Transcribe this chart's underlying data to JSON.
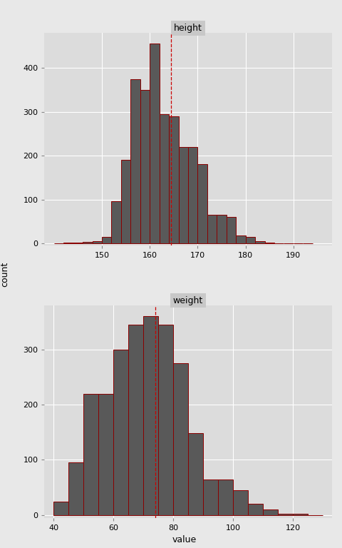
{
  "height": {
    "title": "height",
    "bin_edges": [
      140,
      142,
      144,
      146,
      148,
      150,
      152,
      154,
      156,
      158,
      160,
      162,
      164,
      166,
      168,
      170,
      172,
      174,
      176,
      178,
      180,
      182,
      184,
      186,
      188,
      190,
      192,
      194
    ],
    "counts": [
      0,
      1,
      2,
      3,
      5,
      15,
      96,
      190,
      375,
      350,
      455,
      295,
      290,
      220,
      220,
      180,
      65,
      65,
      60,
      18,
      15,
      5,
      2,
      0,
      0,
      0,
      0
    ],
    "mean_line": 164.5,
    "xlim": [
      138,
      198
    ],
    "ylim": [
      -5,
      480
    ],
    "xticks": [
      150,
      160,
      170,
      180,
      190
    ],
    "yticks": [
      0,
      100,
      200,
      300,
      400
    ]
  },
  "weight": {
    "title": "weight",
    "bin_edges": [
      40,
      45,
      50,
      55,
      60,
      65,
      70,
      75,
      80,
      85,
      90,
      95,
      100,
      105,
      110,
      115,
      120,
      125,
      130
    ],
    "counts": [
      25,
      95,
      220,
      220,
      300,
      345,
      360,
      345,
      275,
      148,
      65,
      65,
      45,
      20,
      10,
      3,
      2,
      0
    ],
    "mean_line": 74.0,
    "xlim": [
      37,
      133
    ],
    "ylim": [
      -5,
      380
    ],
    "xticks": [
      40,
      60,
      80,
      100,
      120
    ],
    "yticks": [
      0,
      100,
      200,
      300
    ]
  },
  "bar_color": "#595959",
  "bar_edge_color": "#8B0000",
  "bg_color": "#E8E8E8",
  "panel_bg": "#DCDCDC",
  "grid_color": "#FFFFFF",
  "mean_line_color": "#CC0000",
  "ylabel": "count",
  "xlabel": "value",
  "title_fontsize": 9,
  "tick_fontsize": 8,
  "label_fontsize": 9
}
